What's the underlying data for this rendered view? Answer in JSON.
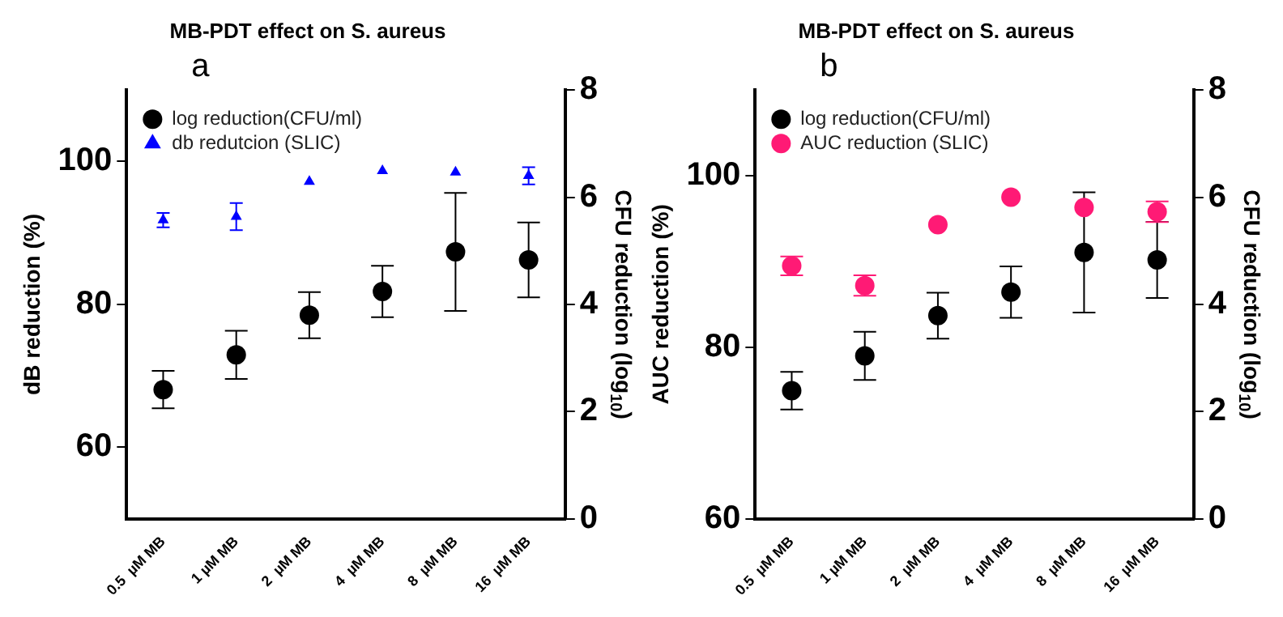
{
  "chart_data": [
    {
      "type": "scatter",
      "title": "MB-PDT effect on S. aureus",
      "annotations": [
        "a"
      ],
      "categories": [
        "0.5  µM MB",
        "1 µM MB",
        "2  µM MB",
        "4  µM MB",
        "8  µM MB",
        "16  µM MB"
      ],
      "ylabel": "dB reduction (%)",
      "y2label": "CFU reduction (log$_{10}$)",
      "ylim": [
        50,
        110
      ],
      "yticks": [
        60,
        80,
        100
      ],
      "y2lim": [
        0,
        8
      ],
      "y2ticks": [
        0,
        2,
        4,
        6,
        8
      ],
      "grid": false,
      "legend": "top left",
      "series": [
        {
          "name": "log reduction(CFU/ml)",
          "color": "#000000",
          "marker": "circle",
          "axis": "y2",
          "values": [
            2.41,
            3.06,
            3.8,
            4.24,
            4.98,
            4.83
          ],
          "errors": [
            0.35,
            0.45,
            0.43,
            0.48,
            1.1,
            0.7
          ]
        },
        {
          "name": "db redutcion (SLIC)",
          "color": "#0000ff",
          "marker": "triangle",
          "values": [
            91.8,
            92.3,
            97.2,
            98.7,
            98.5,
            98.0
          ],
          "errors": [
            1.0,
            1.9,
            null,
            null,
            null,
            1.2
          ]
        }
      ]
    },
    {
      "type": "scatter",
      "title": "MB-PDT effect on S. aureus",
      "annotations": [
        "b"
      ],
      "categories": [
        "0.5  µM MB",
        "1 µM MB",
        "2  µM MB",
        "4  µM MB",
        "8  µM MB",
        "16  µM MB"
      ],
      "ylabel": "AUC reduction (%)",
      "y2label": "CFU reduction (log$_{10}$)",
      "ylim": [
        60,
        110
      ],
      "yticks": [
        60,
        80,
        100
      ],
      "y2lim": [
        0,
        8
      ],
      "y2ticks": [
        0,
        2,
        4,
        6,
        8
      ],
      "grid": false,
      "legend": "top left",
      "series": [
        {
          "name": "log reduction(CFU/ml)",
          "color": "#000000",
          "marker": "circle",
          "axis": "y2",
          "values": [
            2.39,
            3.04,
            3.79,
            4.23,
            4.97,
            4.83
          ],
          "errors": [
            0.35,
            0.45,
            0.43,
            0.48,
            1.12,
            0.71
          ]
        },
        {
          "name": "AUC reduction (SLIC)",
          "color": "#ff1a75",
          "marker": "circle",
          "values": [
            89.5,
            87.2,
            94.3,
            97.5,
            96.3,
            95.8
          ],
          "errors": [
            1.1,
            1.2,
            null,
            null,
            null,
            1.2
          ]
        }
      ]
    }
  ]
}
